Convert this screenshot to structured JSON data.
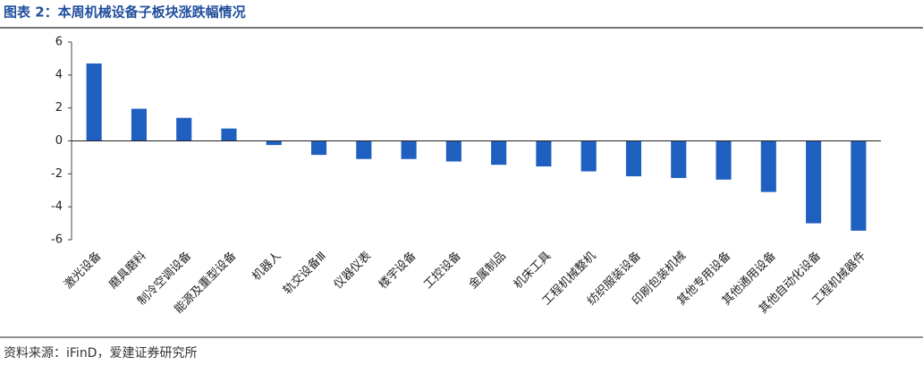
{
  "chart_data": {
    "type": "bar",
    "title": "图表 2：本周机械设备子板块涨跌幅情况",
    "categories": [
      "激光设备",
      "磨具磨料",
      "制冷空调设备",
      "能源及重型设备",
      "机器人",
      "轨交设备Ⅲ",
      "仪器仪表",
      "楼宇设备",
      "工控设备",
      "金属制品",
      "机床工具",
      "工程机械整机",
      "纺织服装设备",
      "印刷包装机械",
      "其他专用设备",
      "其他通用设备",
      "其他自动化设备",
      "工程机械器件"
    ],
    "values": [
      4.7,
      1.95,
      1.4,
      0.75,
      -0.25,
      -0.85,
      -1.1,
      -1.1,
      -1.25,
      -1.45,
      -1.55,
      -1.85,
      -2.15,
      -2.25,
      -2.35,
      -3.1,
      -5.0,
      -5.45
    ],
    "color": "#1f5fbf",
    "ylim": [
      -6,
      6
    ],
    "yticks": [
      -6,
      -4,
      -2,
      0,
      2,
      4,
      6
    ],
    "source": "资料来源：iFinD，爱建证券研究所"
  }
}
